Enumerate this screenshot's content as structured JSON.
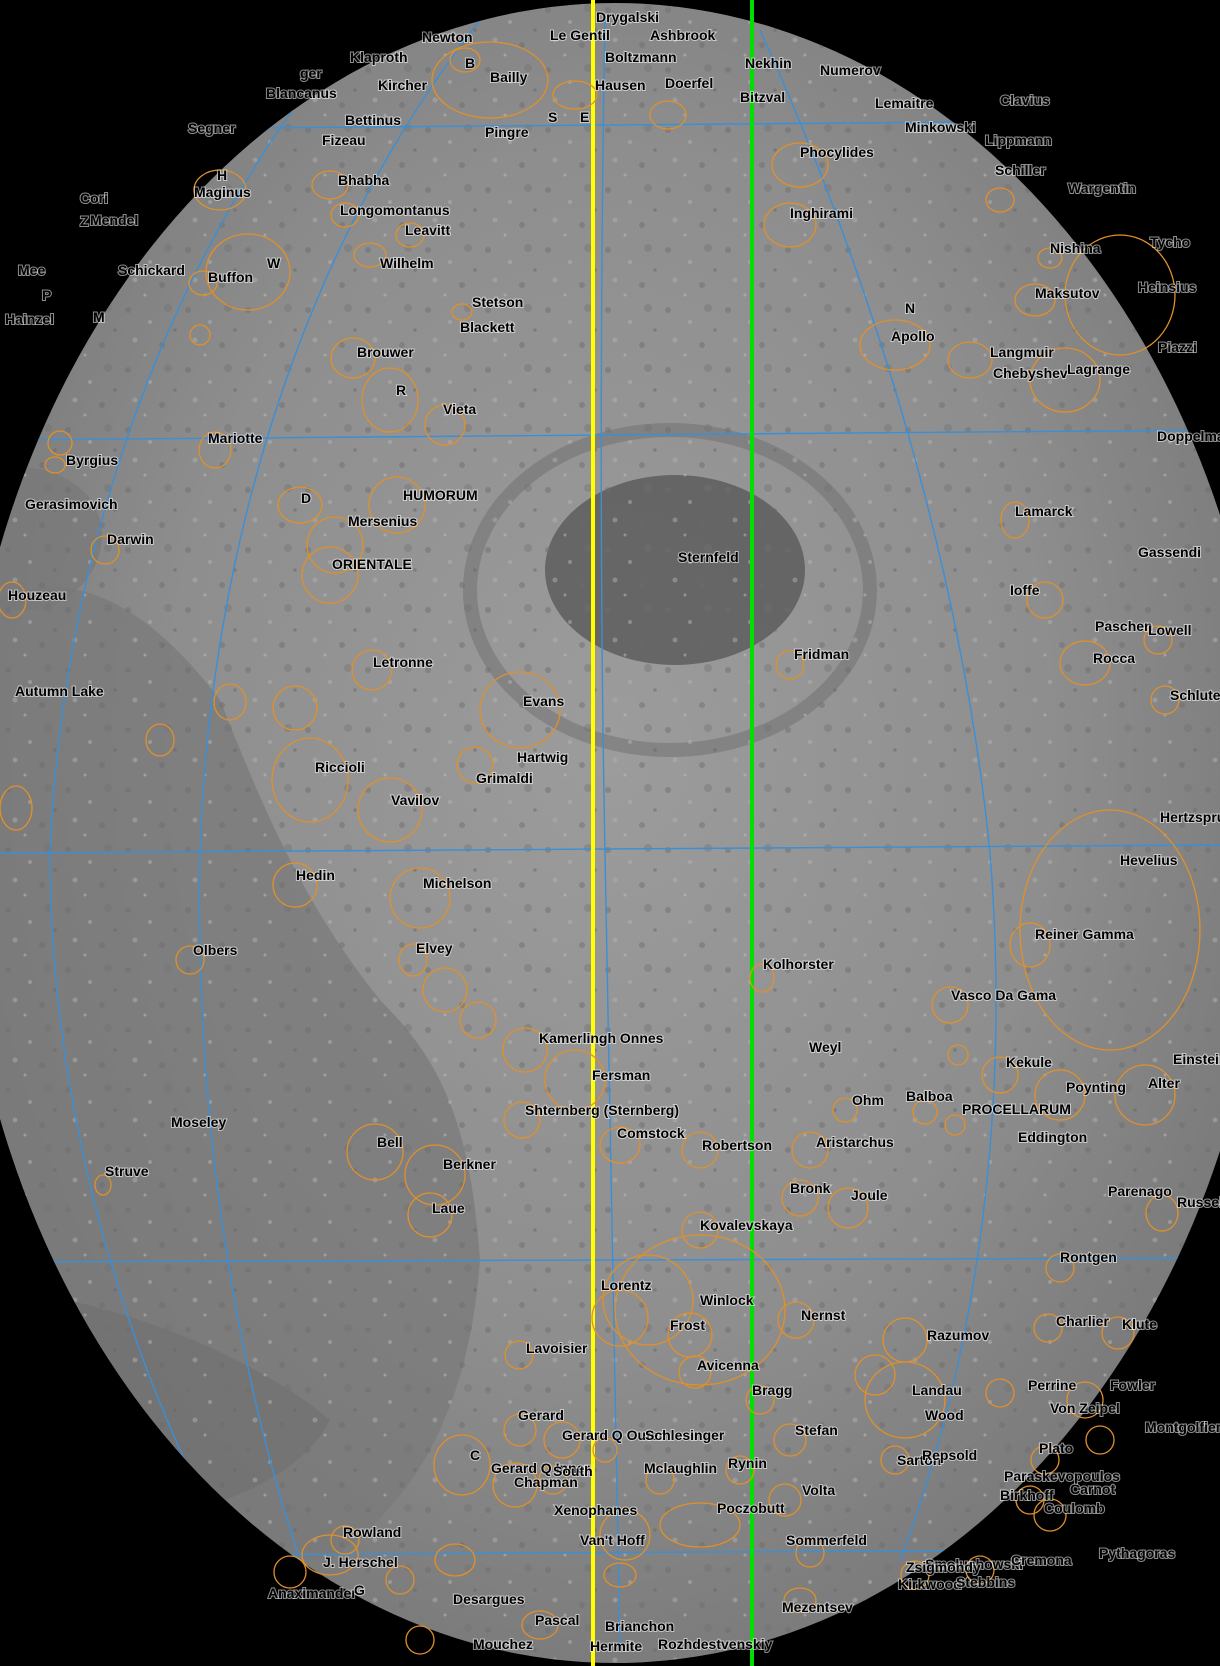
{
  "map": {
    "colors": {
      "background": "#000000",
      "surface_light": "#9a9a9a",
      "surface_dark": "#6a6a6a",
      "mare": "#7c7c7c",
      "grid": "#3a8fd6",
      "crater_outline": "#e0902a",
      "meridian_primary": "#ffff00",
      "meridian_secondary": "#00e000",
      "label": "#000000"
    },
    "features": [
      {
        "name": "Drygalski",
        "type": "label"
      },
      {
        "name": "Newton",
        "type": "label"
      },
      {
        "name": "Le Gentil",
        "type": "label"
      },
      {
        "name": "Ashbrook",
        "type": "label"
      },
      {
        "name": "Klaproth",
        "type": "label"
      },
      {
        "name": "B",
        "type": "label"
      },
      {
        "name": "Boltzmann",
        "type": "label"
      },
      {
        "name": "Nekhin",
        "type": "label"
      },
      {
        "name": "Numerov",
        "type": "label"
      },
      {
        "name": "ger",
        "type": "label"
      },
      {
        "name": "Kircher",
        "type": "label"
      },
      {
        "name": "Bailly",
        "type": "label"
      },
      {
        "name": "Hausen",
        "type": "label"
      },
      {
        "name": "Doerfel",
        "type": "label"
      },
      {
        "name": "Blancanus",
        "type": "label"
      },
      {
        "name": "Bettinus",
        "type": "label"
      },
      {
        "name": "Pingre",
        "type": "label"
      },
      {
        "name": "S",
        "type": "label"
      },
      {
        "name": "E",
        "type": "label"
      },
      {
        "name": "Bitzval",
        "type": "label"
      },
      {
        "name": "Lemaitre",
        "type": "label"
      },
      {
        "name": "Clavius",
        "type": "label"
      },
      {
        "name": "Segner",
        "type": "label"
      },
      {
        "name": "Fizeau",
        "type": "label"
      },
      {
        "name": "Minkowski",
        "type": "label"
      },
      {
        "name": "Lippmann",
        "type": "label"
      },
      {
        "name": "Phocylides",
        "type": "label"
      },
      {
        "name": "Bhabha",
        "type": "label"
      },
      {
        "name": "Schiller",
        "type": "label"
      },
      {
        "name": "H",
        "type": "label"
      },
      {
        "name": "Maginus",
        "type": "label"
      },
      {
        "name": "Cori",
        "type": "label"
      },
      {
        "name": "Wargentin",
        "type": "label"
      },
      {
        "name": "Longomontanus",
        "type": "label"
      },
      {
        "name": "Z",
        "type": "label"
      },
      {
        "name": "Mendel",
        "type": "label"
      },
      {
        "name": "Inghirami",
        "type": "label"
      },
      {
        "name": "Leavitt",
        "type": "label"
      },
      {
        "name": "Nishina",
        "type": "label"
      },
      {
        "name": "Tycho",
        "type": "label"
      },
      {
        "name": "Mee",
        "type": "label"
      },
      {
        "name": "Schickard",
        "type": "label"
      },
      {
        "name": "W",
        "type": "label"
      },
      {
        "name": "Wilhelm",
        "type": "label"
      },
      {
        "name": "P",
        "type": "label"
      },
      {
        "name": "Buffon",
        "type": "label"
      },
      {
        "name": "Maksutov",
        "type": "label"
      },
      {
        "name": "Heinsius",
        "type": "label"
      },
      {
        "name": "Hainzel",
        "type": "label"
      },
      {
        "name": "M",
        "type": "label"
      },
      {
        "name": "Stetson",
        "type": "label"
      },
      {
        "name": "N",
        "type": "label"
      },
      {
        "name": "Blackett",
        "type": "label"
      },
      {
        "name": "Apollo",
        "type": "label"
      },
      {
        "name": "Piazzi",
        "type": "label"
      },
      {
        "name": "Brouwer",
        "type": "label"
      },
      {
        "name": "Langmuir",
        "type": "label"
      },
      {
        "name": "Chebyshev",
        "type": "label"
      },
      {
        "name": "Lagrange",
        "type": "label"
      },
      {
        "name": "R",
        "type": "label"
      },
      {
        "name": "Vieta",
        "type": "label"
      },
      {
        "name": "Mariotte",
        "type": "label"
      },
      {
        "name": "Doppelmayer",
        "type": "label"
      },
      {
        "name": "Byrgius",
        "type": "label"
      },
      {
        "name": "D",
        "type": "label"
      },
      {
        "name": "HUMORUM",
        "type": "label"
      },
      {
        "name": "Gerasimovich",
        "type": "label"
      },
      {
        "name": "Lamarck",
        "type": "label"
      },
      {
        "name": "Mersenius",
        "type": "label"
      },
      {
        "name": "Darwin",
        "type": "label"
      },
      {
        "name": "ORIENTALE",
        "type": "label"
      },
      {
        "name": "Sternfeld",
        "type": "label"
      },
      {
        "name": "Gassendi",
        "type": "label"
      },
      {
        "name": "Houzeau",
        "type": "label"
      },
      {
        "name": "Ioffe",
        "type": "label"
      },
      {
        "name": "Paschen",
        "type": "label"
      },
      {
        "name": "Lowell",
        "type": "label"
      },
      {
        "name": "Fridman",
        "type": "label"
      },
      {
        "name": "Rocca",
        "type": "label"
      },
      {
        "name": "Letronne",
        "type": "label"
      },
      {
        "name": "Autumn Lake",
        "type": "label"
      },
      {
        "name": "Evans",
        "type": "label"
      },
      {
        "name": "Schluter",
        "type": "label"
      },
      {
        "name": "Hartwig",
        "type": "label"
      },
      {
        "name": "Grimaldi",
        "type": "label"
      },
      {
        "name": "Riccioli",
        "type": "label"
      },
      {
        "name": "Vavilov",
        "type": "label"
      },
      {
        "name": "Hertzsprung",
        "type": "label"
      },
      {
        "name": "Hevelius",
        "type": "label"
      },
      {
        "name": "Hedin",
        "type": "label"
      },
      {
        "name": "Michelson",
        "type": "label"
      },
      {
        "name": "Reiner Gamma",
        "type": "label"
      },
      {
        "name": "Olbers",
        "type": "label"
      },
      {
        "name": "Elvey",
        "type": "label"
      },
      {
        "name": "Kolhorster",
        "type": "label"
      },
      {
        "name": "Vasco Da Gama",
        "type": "label"
      },
      {
        "name": "Kamerlingh Onnes",
        "type": "label"
      },
      {
        "name": "Weyl",
        "type": "label"
      },
      {
        "name": "Kekule",
        "type": "label"
      },
      {
        "name": "Einstein",
        "type": "label"
      },
      {
        "name": "Fersman",
        "type": "label"
      },
      {
        "name": "Poynting",
        "type": "label"
      },
      {
        "name": "Alter",
        "type": "label"
      },
      {
        "name": "Ohm",
        "type": "label"
      },
      {
        "name": "Balboa",
        "type": "label"
      },
      {
        "name": "Shternberg (Sternberg)",
        "type": "label"
      },
      {
        "name": "PROCELLARUM",
        "type": "label"
      },
      {
        "name": "Moseley",
        "type": "label"
      },
      {
        "name": "Comstock",
        "type": "label"
      },
      {
        "name": "Eddington",
        "type": "label"
      },
      {
        "name": "Bell",
        "type": "label"
      },
      {
        "name": "Robertson",
        "type": "label"
      },
      {
        "name": "Aristarchus",
        "type": "label"
      },
      {
        "name": "Struve",
        "type": "label"
      },
      {
        "name": "Berkner",
        "type": "label"
      },
      {
        "name": "Bronk",
        "type": "label"
      },
      {
        "name": "Parenago",
        "type": "label"
      },
      {
        "name": "Joule",
        "type": "label"
      },
      {
        "name": "Russell",
        "type": "label"
      },
      {
        "name": "Laue",
        "type": "label"
      },
      {
        "name": "Kovalevskaya",
        "type": "label"
      },
      {
        "name": "Rontgen",
        "type": "label"
      },
      {
        "name": "Lorentz",
        "type": "label"
      },
      {
        "name": "Winlock",
        "type": "label"
      },
      {
        "name": "Nernst",
        "type": "label"
      },
      {
        "name": "Charlier",
        "type": "label"
      },
      {
        "name": "Klute",
        "type": "label"
      },
      {
        "name": "Frost",
        "type": "label"
      },
      {
        "name": "Lavoisier",
        "type": "label"
      },
      {
        "name": "Avicenna",
        "type": "label"
      },
      {
        "name": "Razumov",
        "type": "label"
      },
      {
        "name": "Perrine",
        "type": "label"
      },
      {
        "name": "Fowler",
        "type": "label"
      },
      {
        "name": "Bragg",
        "type": "label"
      },
      {
        "name": "Landau",
        "type": "label"
      },
      {
        "name": "Von Zeipel",
        "type": "label"
      },
      {
        "name": "Wood",
        "type": "label"
      },
      {
        "name": "Gerard",
        "type": "label"
      },
      {
        "name": "Stefan",
        "type": "label"
      },
      {
        "name": "Montgolfier",
        "type": "label"
      },
      {
        "name": "Gerard Q Outer",
        "type": "label"
      },
      {
        "name": "Schlesinger",
        "type": "label"
      },
      {
        "name": "Plato",
        "type": "label"
      },
      {
        "name": "C",
        "type": "label"
      },
      {
        "name": "Gerard Q Inner",
        "type": "label"
      },
      {
        "name": "Mclaughlin",
        "type": "label"
      },
      {
        "name": "Rynin",
        "type": "label"
      },
      {
        "name": "Sarton",
        "type": "label"
      },
      {
        "name": "Paraskevopoulos",
        "type": "label"
      },
      {
        "name": "Repsold",
        "type": "label"
      },
      {
        "name": "Carnot",
        "type": "label"
      },
      {
        "name": "Chapman",
        "type": "label"
      },
      {
        "name": "Volta",
        "type": "label"
      },
      {
        "name": "Coulomb",
        "type": "label"
      },
      {
        "name": "Rowland",
        "type": "label"
      },
      {
        "name": "South",
        "type": "label"
      },
      {
        "name": "Xenophanes",
        "type": "label"
      },
      {
        "name": "Poczobutt",
        "type": "label"
      },
      {
        "name": "Birkhoff",
        "type": "label"
      },
      {
        "name": "Smoluchowski",
        "type": "label"
      },
      {
        "name": "J. Herschel",
        "type": "label"
      },
      {
        "name": "Van't Hoff",
        "type": "label"
      },
      {
        "name": "Sommerfeld",
        "type": "label"
      },
      {
        "name": "Pythagoras",
        "type": "label"
      },
      {
        "name": "Zsigmondy",
        "type": "label"
      },
      {
        "name": "Cremona",
        "type": "label"
      },
      {
        "name": "Kirkwood",
        "type": "label"
      },
      {
        "name": "Stebbins",
        "type": "label"
      },
      {
        "name": "Anaximander",
        "type": "label"
      },
      {
        "name": "G",
        "type": "label"
      },
      {
        "name": "Desargues",
        "type": "label"
      },
      {
        "name": "Mezentsev",
        "type": "label"
      },
      {
        "name": "Pascal",
        "type": "label"
      },
      {
        "name": "Brianchon",
        "type": "label"
      },
      {
        "name": "Mouchez",
        "type": "label"
      },
      {
        "name": "Hermite",
        "type": "label"
      },
      {
        "name": "Rozhdestvenskiy",
        "type": "label"
      }
    ]
  }
}
